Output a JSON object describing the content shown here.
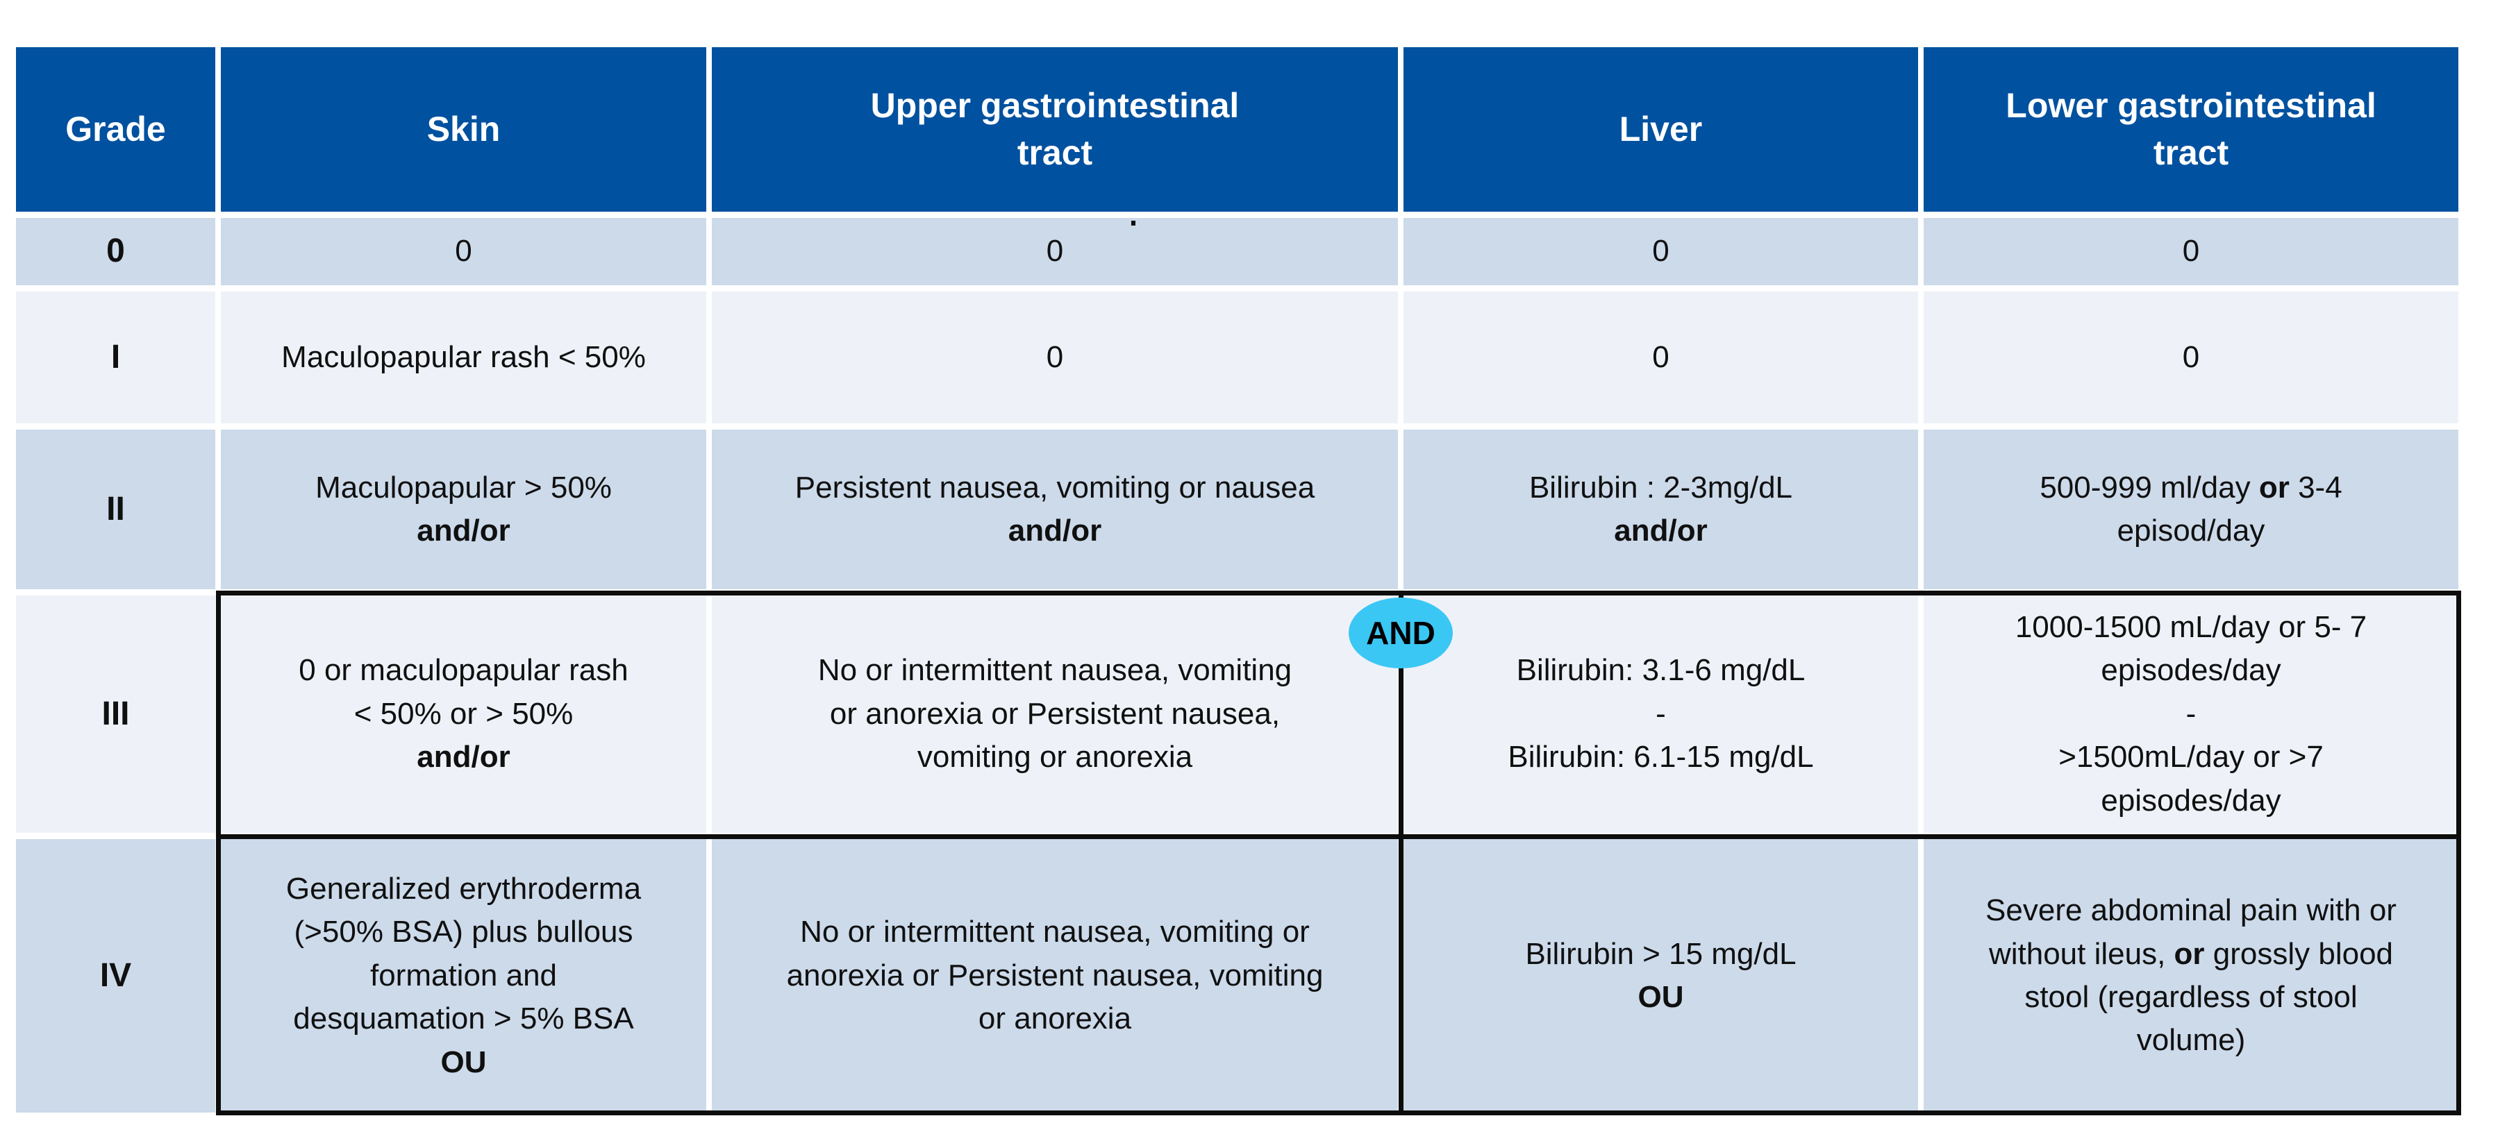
{
  "colors": {
    "page_bg": "#FFFFFF",
    "header_bg": "#00519F",
    "header_text": "#FFFFFF",
    "row_dark": "#CCDAEA",
    "row_light": "#EEF2F8",
    "border_black": "#0D0D0D",
    "and_badge_bg": "#3BC7F4",
    "and_badge_text": "#000000",
    "cell_text": "#101010"
  },
  "annotations": {
    "and_badge": "AND"
  },
  "table": {
    "column_keys": [
      "grade",
      "skin",
      "upper-gi",
      "liver",
      "lower-gi"
    ],
    "header": [
      {
        "lines": [
          "Grade"
        ]
      },
      {
        "lines": [
          "Skin"
        ]
      },
      {
        "lines": [
          "Upper gastrointestinal",
          "tract"
        ]
      },
      {
        "lines": [
          "Liver"
        ]
      },
      {
        "lines": [
          "Lower gastrointestinal",
          "tract"
        ]
      }
    ],
    "rows": [
      {
        "grade": "0",
        "shade": "dark",
        "cells": [
          [
            [
              [
                "0",
                false
              ]
            ]
          ],
          [
            [
              [
                "0",
                false
              ]
            ]
          ],
          [
            [
              [
                "0",
                false
              ]
            ]
          ],
          [
            [
              [
                "0",
                false
              ]
            ]
          ]
        ]
      },
      {
        "grade": "I",
        "shade": "light",
        "cells": [
          [
            [
              [
                "Maculopapular rash < 50%",
                false
              ]
            ]
          ],
          [
            [
              [
                "0",
                false
              ]
            ]
          ],
          [
            [
              [
                "0",
                false
              ]
            ]
          ],
          [
            [
              [
                "0",
                false
              ]
            ]
          ]
        ]
      },
      {
        "grade": "II",
        "shade": "dark",
        "cells": [
          [
            [
              [
                "Maculopapular > 50%",
                false
              ]
            ],
            [
              [
                "and/or",
                true
              ]
            ]
          ],
          [
            [
              [
                "Persistent nausea, vomiting or nausea",
                false
              ]
            ],
            [
              [
                "and/or",
                true
              ]
            ]
          ],
          [
            [
              [
                "Bilirubin : 2-3mg/dL",
                false
              ]
            ],
            [
              [
                "and/or",
                true
              ]
            ]
          ],
          [
            [
              [
                "500-999 ml/day ",
                false
              ],
              [
                "or",
                true
              ],
              [
                " 3-4",
                false
              ]
            ],
            [
              [
                "episod/day",
                false
              ]
            ]
          ]
        ]
      },
      {
        "grade": "III",
        "shade": "light",
        "cells": [
          [
            [
              [
                "0 or maculopapular rash",
                false
              ]
            ],
            [
              [
                "< 50% or  > 50%",
                false
              ]
            ],
            [
              [
                "and/or",
                true
              ]
            ]
          ],
          [
            [
              [
                "No or intermittent nausea, vomiting",
                false
              ]
            ],
            [
              [
                "or anorexia or Persistent nausea,",
                false
              ]
            ],
            [
              [
                "vomiting or anorexia",
                false
              ]
            ]
          ],
          [
            [
              [
                "Bilirubin: 3.1-6 mg/dL",
                false
              ]
            ],
            [
              [
                "-",
                false
              ]
            ],
            [
              [
                "Bilirubin: 6.1-15 mg/dL",
                false
              ]
            ]
          ],
          [
            [
              [
                "1000-1500 mL/day or 5- 7",
                false
              ]
            ],
            [
              [
                "episodes/day",
                false
              ]
            ],
            [
              [
                "-",
                false
              ]
            ],
            [
              [
                ">1500mL/day or >7",
                false
              ]
            ],
            [
              [
                "episodes/day",
                false
              ]
            ]
          ]
        ]
      },
      {
        "grade": "IV",
        "shade": "dark",
        "cells": [
          [
            [
              [
                "Generalized erythroderma",
                false
              ]
            ],
            [
              [
                "(>50% BSA) plus bullous",
                false
              ]
            ],
            [
              [
                "formation and",
                false
              ]
            ],
            [
              [
                "desquamation > 5% BSA",
                false
              ]
            ],
            [
              [
                "OU",
                true
              ]
            ]
          ],
          [
            [
              [
                "No or intermittent nausea, vomiting or",
                false
              ]
            ],
            [
              [
                "anorexia or Persistent nausea, vomiting",
                false
              ]
            ],
            [
              [
                "or anorexia",
                false
              ]
            ]
          ],
          [
            [
              [
                "Bilirubin > 15 mg/dL",
                false
              ]
            ],
            [
              [
                "OU",
                true
              ]
            ]
          ],
          [
            [
              [
                "Severe abdominal pain with or",
                false
              ]
            ],
            [
              [
                "without ileus, ",
                false
              ],
              [
                "or",
                true
              ],
              [
                " grossly blood",
                false
              ]
            ],
            [
              [
                "stool (regardless of stool",
                false
              ]
            ],
            [
              [
                "volume)",
                false
              ]
            ]
          ]
        ]
      }
    ]
  }
}
